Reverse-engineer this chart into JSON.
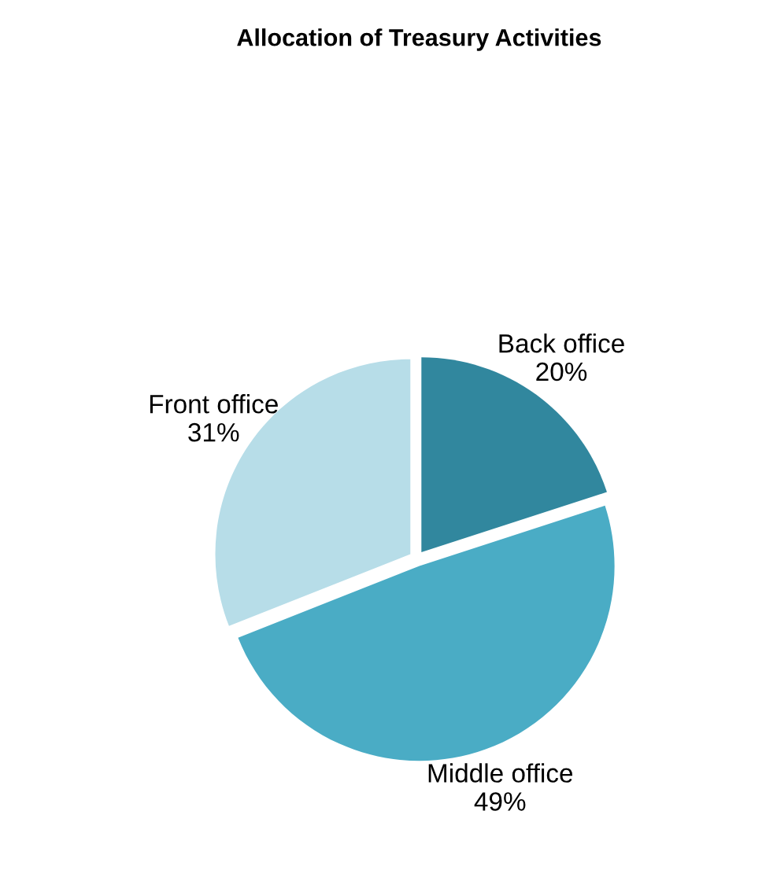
{
  "chart_data": {
    "type": "pie",
    "title": "Allocation of Treasury Activities",
    "categories": [
      "Back office",
      "Middle office",
      "Front office"
    ],
    "values": [
      20,
      49,
      31
    ],
    "value_labels": [
      "20%",
      "49%",
      "31%"
    ],
    "colors": [
      "#31879e",
      "#4aacc5",
      "#b7dde8"
    ],
    "legend": false
  }
}
